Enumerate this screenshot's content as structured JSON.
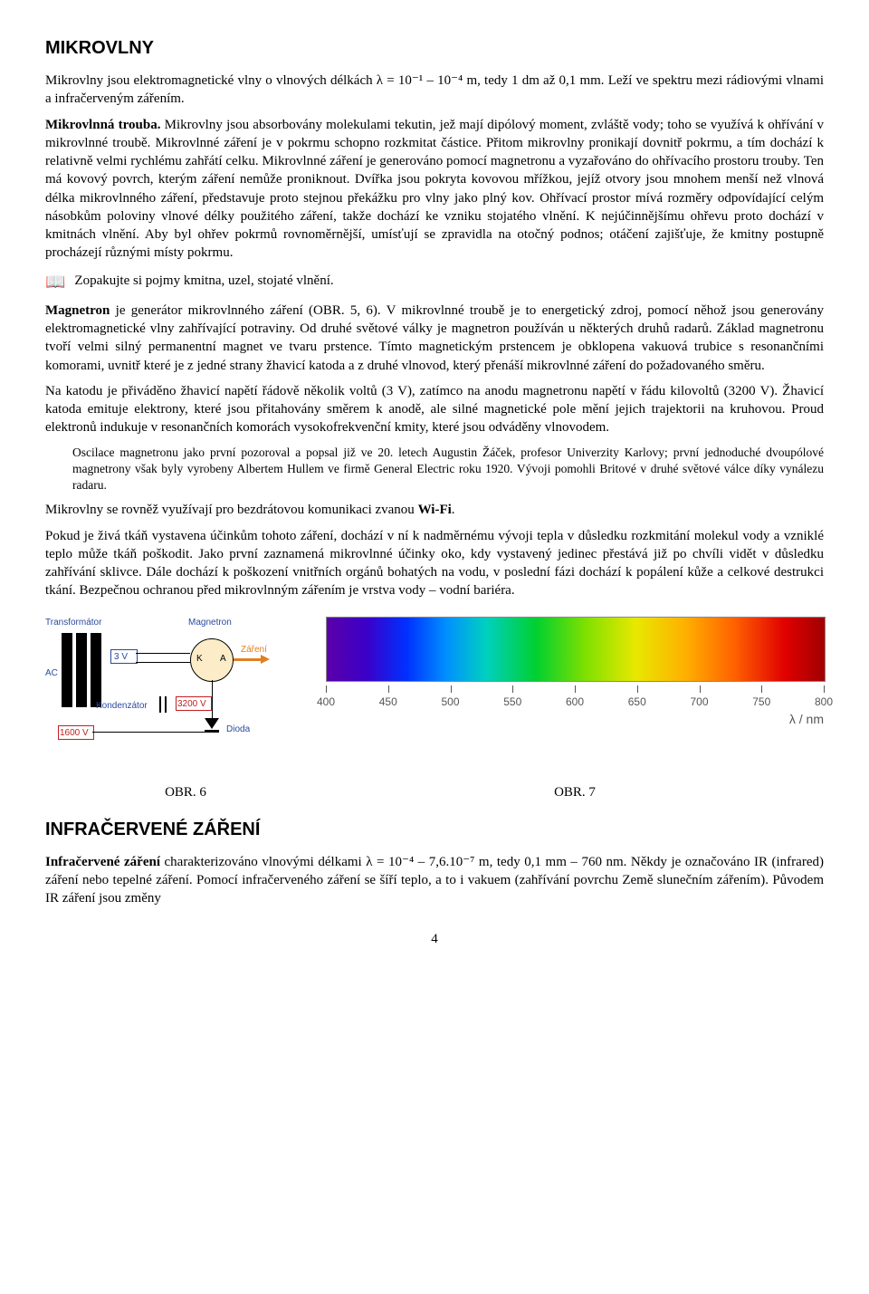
{
  "title1": "MIKROVLNY",
  "p1": "Mikrovlny jsou elektromagnetické vlny o vlnových délkách λ = 10⁻¹ – 10⁻⁴ m, tedy 1 dm až 0,1 mm. Leží ve spektru mezi rádiovými vlnami a infračerveným zářením.",
  "p2_bold": "Mikrovlnná trouba.",
  "p2_rest": " Mikrovlny jsou absorbovány molekulami tekutin, jež mají dipólový moment, zvláště vody; toho se využívá k ohřívání v mikrovlnné troubě. Mikrovlnné záření je v pokrmu schopno rozkmitat částice. Přitom mikrovlny pronikají dovnitř pokrmu, a tím dochází k relativně velmi rychlému zahřátí celku. Mikrovlnné záření je generováno pomocí magnetronu a vyzařováno do ohřívacího prostoru trouby. Ten má kovový povrch, kterým záření nemůže proniknout. Dvířka jsou pokryta kovovou mřížkou, jejíž otvory jsou mnohem menší než vlnová délka mikrovlnného záření, představuje proto stejnou překážku pro vlny jako plný kov. Ohřívací prostor mívá rozměry odpovídající celým násobkům poloviny vlnové délky použitého záření, takže dochází ke vzniku stojatého vlnění. K nejúčinnějšímu ohřevu proto dochází v kmitnách vlnění. Aby byl ohřev pokrmů rovnoměrnější, umísťují se zpravidla na otočný podnos; otáčení zajišťuje, že kmitny postupně procházejí různými místy pokrmu.",
  "book_line": "Zopakujte si pojmy kmitna, uzel, stojaté vlnění.",
  "p3_bold": "Magnetron",
  "p3_rest": " je generátor mikrovlnného záření (OBR. 5, 6). V mikrovlnné troubě je to energetický zdroj, pomocí něhož jsou generovány elektromagnetické vlny zahřívající potraviny. Od druhé světové války je magnetron používán u některých druhů radarů. Základ magnetronu tvoří velmi silný permanentní magnet ve tvaru prstence. Tímto magnetickým prstencem je obklopena vakuová trubice s resonančními komorami, uvnitř které je z jedné strany žhavicí katoda a z druhé vlnovod, který přenáší mikrovlnné záření do požadovaného směru.",
  "p4": "Na katodu je přiváděno žhavicí napětí řádově několik voltů (3 V), zatímco na anodu magnetronu napětí v řádu kilovoltů (3200 V). Žhavicí katoda emituje elektrony, které jsou přitahovány směrem k anodě, ale silné magnetické pole mění jejich trajektorii na kruhovou. Proud elektronů indukuje v resonančních komorách vysokofrekvenční kmity, které jsou odváděny vlnovodem.",
  "indent": "Oscilace magnetronu jako první pozoroval a popsal již ve 20. letech Augustin Žáček, profesor Univerzity Karlovy; první jednoduché dvoupólové magnetrony však byly vyrobeny Albertem Hullem ve firmě General Electric roku 1920. Vývoji pomohli Britové v druhé světové válce díky vynálezu radaru.",
  "p5_pre": "Mikrovlny se rovněž využívají pro bezdrátovou komunikaci zvanou ",
  "p5_bold": "Wi-Fi",
  "p5_post": ".",
  "p6": "Pokud je živá tkáň vystavena účinkům tohoto záření, dochází v ní k nadměrnému vývoji tepla v důsledku rozkmitání molekul vody a vzniklé teplo může tkáň poškodit. Jako první zaznamená mikrovlnné účinky oko, kdy vystavený jedinec přestává již po chvíli vidět v důsledku zahřívání sklivce. Dále dochází k poškození vnitřních orgánů bohatých na vodu, v poslední fázi dochází k popálení kůže a celkové destrukci tkání. Bezpečnou ochranou před mikrovlnným zářením je vrstva vody – vodní bariéra.",
  "circuit_labels": {
    "transformator": "Transformátor",
    "magnetron": "Magnetron",
    "ac": "AC",
    "v3": "3 V",
    "kondenzator": "Kondenzátor",
    "v3200": "3200 V",
    "v1600": "1600 V",
    "dioda": "Dioda",
    "zareni": "Záření",
    "k": "K",
    "a": "A"
  },
  "spectrum": {
    "ticks": [
      400,
      450,
      500,
      550,
      600,
      650,
      700,
      750,
      800
    ],
    "axis_label": "λ / nm"
  },
  "cap6": "OBR. 6",
  "cap7": "OBR. 7",
  "title2": "INFRAČERVENÉ ZÁŘENÍ",
  "p7_bold": "Infračervené záření",
  "p7_rest": " charakterizováno vlnovými délkami λ = 10⁻⁴ – 7,6.10⁻⁷ m, tedy 0,1 mm – 760 nm. Někdy je označováno  IR (infrared) záření nebo tepelné záření. Pomocí infračerveného záření se šíří teplo, a to i vakuem (zahřívání povrchu Země slunečním zářením). Původem IR záření jsou změny",
  "page": "4"
}
